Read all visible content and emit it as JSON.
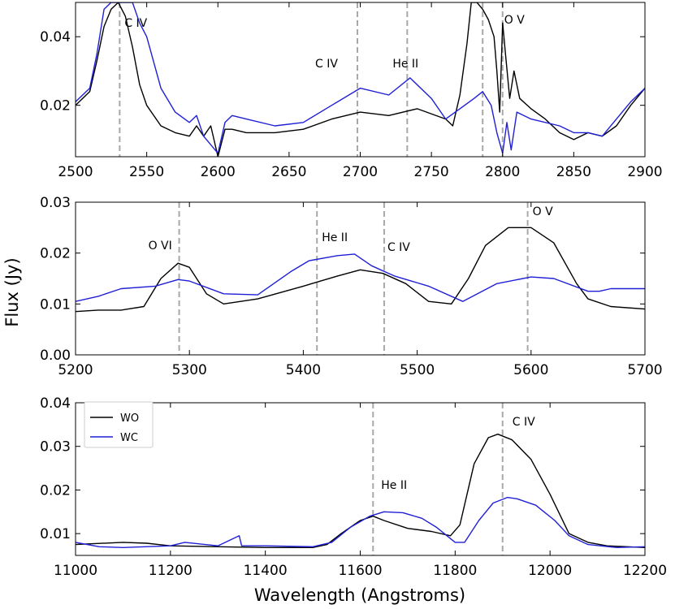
{
  "figure": {
    "ylabel": "Flux (Jy)",
    "xlabel": "Wavelength (Angstroms)",
    "legend": [
      {
        "label": "WO",
        "color": "#000000"
      },
      {
        "label": "WC",
        "color": "#1f1fd6"
      }
    ],
    "line_color": "#a8a8a8"
  },
  "chart_data": [
    {
      "type": "line",
      "xlim": [
        2500,
        2900
      ],
      "ylim": [
        0.005,
        0.05
      ],
      "xticks": [
        2500,
        2550,
        2600,
        2650,
        2700,
        2750,
        2800,
        2850,
        2900
      ],
      "yticks": [
        0.02,
        0.04
      ],
      "ytick_labels": [
        "0.02",
        "0.04"
      ],
      "lines": [
        {
          "x": 2531,
          "label": "C IV"
        },
        {
          "x": 2698,
          "label": "C IV"
        },
        {
          "x": 2733,
          "label": "He II"
        },
        {
          "x": 2786,
          "label": ""
        },
        {
          "x": 2800,
          "label": "O V"
        }
      ],
      "series": [
        {
          "name": "WO",
          "color": "#000000",
          "points": [
            [
              2500,
              0.02
            ],
            [
              2510,
              0.024
            ],
            [
              2515,
              0.033
            ],
            [
              2520,
              0.043
            ],
            [
              2525,
              0.048
            ],
            [
              2530,
              0.05
            ],
            [
              2535,
              0.046
            ],
            [
              2540,
              0.037
            ],
            [
              2545,
              0.026
            ],
            [
              2550,
              0.02
            ],
            [
              2560,
              0.014
            ],
            [
              2570,
              0.012
            ],
            [
              2580,
              0.011
            ],
            [
              2585,
              0.014
            ],
            [
              2590,
              0.011
            ],
            [
              2595,
              0.014
            ],
            [
              2600,
              0.005
            ],
            [
              2605,
              0.013
            ],
            [
              2610,
              0.013
            ],
            [
              2620,
              0.012
            ],
            [
              2640,
              0.012
            ],
            [
              2660,
              0.013
            ],
            [
              2680,
              0.016
            ],
            [
              2700,
              0.018
            ],
            [
              2720,
              0.017
            ],
            [
              2740,
              0.019
            ],
            [
              2760,
              0.016
            ],
            [
              2765,
              0.014
            ],
            [
              2770,
              0.023
            ],
            [
              2775,
              0.038
            ],
            [
              2778,
              0.05
            ],
            [
              2782,
              0.05
            ],
            [
              2786,
              0.048
            ],
            [
              2790,
              0.045
            ],
            [
              2794,
              0.04
            ],
            [
              2796,
              0.03
            ],
            [
              2798,
              0.018
            ],
            [
              2800,
              0.044
            ],
            [
              2802,
              0.035
            ],
            [
              2805,
              0.022
            ],
            [
              2808,
              0.03
            ],
            [
              2812,
              0.022
            ],
            [
              2820,
              0.019
            ],
            [
              2830,
              0.016
            ],
            [
              2840,
              0.012
            ],
            [
              2850,
              0.01
            ],
            [
              2860,
              0.012
            ],
            [
              2870,
              0.011
            ],
            [
              2880,
              0.014
            ],
            [
              2890,
              0.02
            ],
            [
              2900,
              0.025
            ]
          ]
        },
        {
          "name": "WC",
          "color": "#1f1fd6",
          "points": [
            [
              2500,
              0.021
            ],
            [
              2510,
              0.025
            ],
            [
              2515,
              0.035
            ],
            [
              2520,
              0.048
            ],
            [
              2525,
              0.05
            ],
            [
              2535,
              0.05
            ],
            [
              2540,
              0.05
            ],
            [
              2545,
              0.044
            ],
            [
              2550,
              0.04
            ],
            [
              2560,
              0.025
            ],
            [
              2570,
              0.018
            ],
            [
              2580,
              0.015
            ],
            [
              2585,
              0.017
            ],
            [
              2590,
              0.011
            ],
            [
              2600,
              0.006
            ],
            [
              2605,
              0.015
            ],
            [
              2610,
              0.017
            ],
            [
              2620,
              0.016
            ],
            [
              2640,
              0.014
            ],
            [
              2660,
              0.015
            ],
            [
              2680,
              0.02
            ],
            [
              2700,
              0.025
            ],
            [
              2720,
              0.023
            ],
            [
              2735,
              0.028
            ],
            [
              2750,
              0.022
            ],
            [
              2760,
              0.016
            ],
            [
              2770,
              0.019
            ],
            [
              2780,
              0.022
            ],
            [
              2786,
              0.024
            ],
            [
              2792,
              0.02
            ],
            [
              2796,
              0.012
            ],
            [
              2800,
              0.006
            ],
            [
              2803,
              0.015
            ],
            [
              2806,
              0.007
            ],
            [
              2810,
              0.018
            ],
            [
              2820,
              0.016
            ],
            [
              2840,
              0.014
            ],
            [
              2850,
              0.012
            ],
            [
              2860,
              0.012
            ],
            [
              2870,
              0.011
            ],
            [
              2880,
              0.016
            ],
            [
              2890,
              0.021
            ],
            [
              2900,
              0.025
            ]
          ]
        }
      ]
    },
    {
      "type": "line",
      "xlim": [
        5200,
        5700
      ],
      "ylim": [
        0,
        0.03
      ],
      "xticks": [
        5200,
        5300,
        5400,
        5500,
        5600,
        5700
      ],
      "yticks": [
        0,
        0.01,
        0.02,
        0.03
      ],
      "ytick_labels": [
        "0.00",
        "0.01",
        "0.02",
        "0.03"
      ],
      "lines": [
        {
          "x": 5291,
          "label": "O VI"
        },
        {
          "x": 5412,
          "label": "He II"
        },
        {
          "x": 5471,
          "label": "C IV"
        },
        {
          "x": 5597,
          "label": "O V"
        }
      ],
      "series": [
        {
          "name": "WO",
          "color": "#000000",
          "points": [
            [
              5200,
              0.0085
            ],
            [
              5220,
              0.0088
            ],
            [
              5240,
              0.0088
            ],
            [
              5260,
              0.0095
            ],
            [
              5275,
              0.015
            ],
            [
              5290,
              0.018
            ],
            [
              5300,
              0.0172
            ],
            [
              5315,
              0.012
            ],
            [
              5330,
              0.01
            ],
            [
              5360,
              0.011
            ],
            [
              5400,
              0.0135
            ],
            [
              5430,
              0.0155
            ],
            [
              5450,
              0.0167
            ],
            [
              5470,
              0.016
            ],
            [
              5490,
              0.014
            ],
            [
              5510,
              0.0105
            ],
            [
              5530,
              0.01
            ],
            [
              5545,
              0.015
            ],
            [
              5560,
              0.0215
            ],
            [
              5580,
              0.025
            ],
            [
              5600,
              0.025
            ],
            [
              5620,
              0.022
            ],
            [
              5640,
              0.014
            ],
            [
              5650,
              0.011
            ],
            [
              5670,
              0.0095
            ],
            [
              5700,
              0.009
            ]
          ]
        },
        {
          "name": "WC",
          "color": "#1f1fd6",
          "points": [
            [
              5200,
              0.0105
            ],
            [
              5220,
              0.0115
            ],
            [
              5240,
              0.013
            ],
            [
              5270,
              0.0135
            ],
            [
              5290,
              0.0148
            ],
            [
              5300,
              0.0145
            ],
            [
              5330,
              0.012
            ],
            [
              5360,
              0.0118
            ],
            [
              5390,
              0.0165
            ],
            [
              5405,
              0.0185
            ],
            [
              5430,
              0.0195
            ],
            [
              5445,
              0.0198
            ],
            [
              5460,
              0.0175
            ],
            [
              5480,
              0.0155
            ],
            [
              5510,
              0.0135
            ],
            [
              5540,
              0.0105
            ],
            [
              5570,
              0.014
            ],
            [
              5600,
              0.0153
            ],
            [
              5620,
              0.015
            ],
            [
              5650,
              0.0125
            ],
            [
              5660,
              0.0125
            ],
            [
              5670,
              0.013
            ],
            [
              5700,
              0.013
            ]
          ]
        }
      ]
    },
    {
      "type": "line",
      "xlim": [
        11000,
        12200
      ],
      "ylim": [
        0.005,
        0.04
      ],
      "xticks": [
        11000,
        11200,
        11400,
        11600,
        11800,
        12000,
        12200
      ],
      "yticks": [
        0.01,
        0.02,
        0.03,
        0.04
      ],
      "ytick_labels": [
        "0.01",
        "0.02",
        "0.03",
        "0.04"
      ],
      "lines": [
        {
          "x": 11627,
          "label": "He II"
        },
        {
          "x": 11900,
          "label": "C IV"
        }
      ],
      "series": [
        {
          "name": "WO",
          "color": "#000000",
          "points": [
            [
              11000,
              0.0075
            ],
            [
              11100,
              0.008
            ],
            [
              11150,
              0.0078
            ],
            [
              11200,
              0.0072
            ],
            [
              11300,
              0.007
            ],
            [
              11400,
              0.0068
            ],
            [
              11500,
              0.0068
            ],
            [
              11530,
              0.0075
            ],
            [
              11560,
              0.01
            ],
            [
              11600,
              0.013
            ],
            [
              11627,
              0.014
            ],
            [
              11650,
              0.013
            ],
            [
              11700,
              0.0112
            ],
            [
              11750,
              0.0105
            ],
            [
              11790,
              0.0095
            ],
            [
              11810,
              0.012
            ],
            [
              11840,
              0.026
            ],
            [
              11870,
              0.032
            ],
            [
              11890,
              0.0328
            ],
            [
              11920,
              0.0315
            ],
            [
              11960,
              0.027
            ],
            [
              12000,
              0.019
            ],
            [
              12040,
              0.01
            ],
            [
              12080,
              0.008
            ],
            [
              12120,
              0.0072
            ],
            [
              12200,
              0.0068
            ]
          ]
        },
        {
          "name": "WC",
          "color": "#1f1fd6",
          "points": [
            [
              11000,
              0.008
            ],
            [
              11050,
              0.007
            ],
            [
              11100,
              0.0068
            ],
            [
              11200,
              0.0072
            ],
            [
              11230,
              0.008
            ],
            [
              11300,
              0.0072
            ],
            [
              11345,
              0.0095
            ],
            [
              11350,
              0.0072
            ],
            [
              11400,
              0.0072
            ],
            [
              11500,
              0.007
            ],
            [
              11540,
              0.008
            ],
            [
              11580,
              0.0115
            ],
            [
              11620,
              0.014
            ],
            [
              11650,
              0.015
            ],
            [
              11690,
              0.0148
            ],
            [
              11730,
              0.0135
            ],
            [
              11760,
              0.0115
            ],
            [
              11800,
              0.008
            ],
            [
              11820,
              0.008
            ],
            [
              11850,
              0.013
            ],
            [
              11880,
              0.017
            ],
            [
              11910,
              0.0183
            ],
            [
              11930,
              0.018
            ],
            [
              11970,
              0.0165
            ],
            [
              12010,
              0.013
            ],
            [
              12040,
              0.0095
            ],
            [
              12080,
              0.0075
            ],
            [
              12140,
              0.0068
            ],
            [
              12200,
              0.007
            ]
          ]
        }
      ]
    }
  ]
}
